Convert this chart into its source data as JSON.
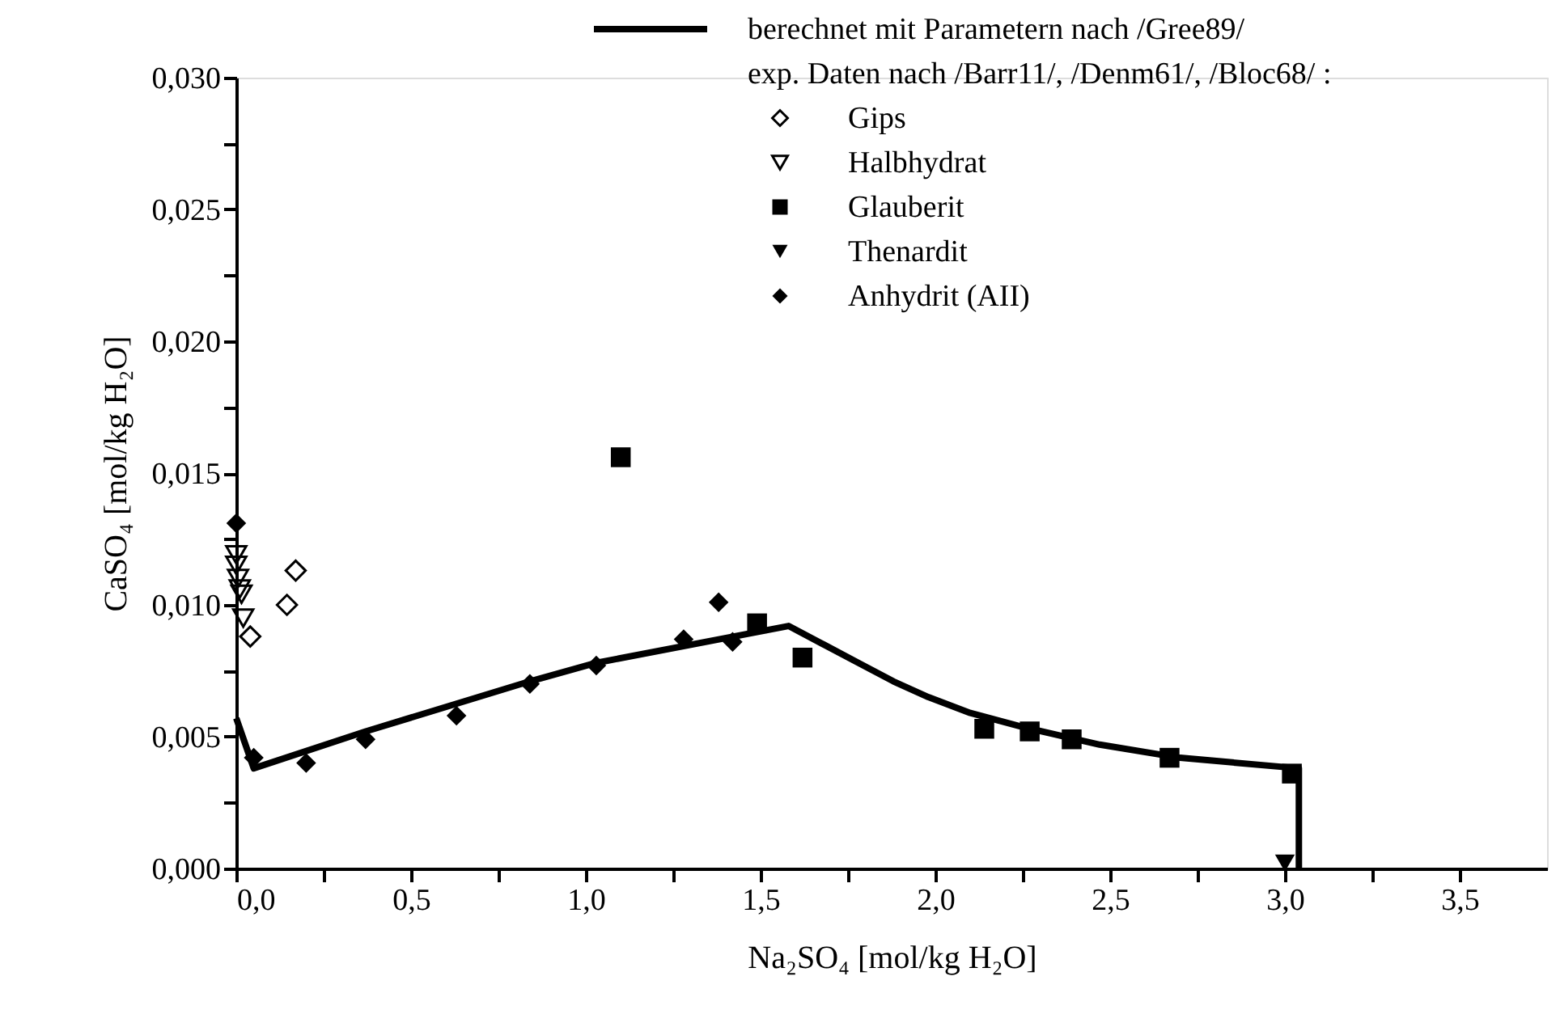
{
  "chart_data": {
    "type": "scatter",
    "xlabel": "Na₂SO₄ [mol/kg H₂O]",
    "ylabel": "CaSO₄ [mol/kg H₂O]",
    "legend_title": "exp. Daten nach /Barr11/, /Denm61/, /Bloc68/ :",
    "xlim": [
      0,
      3.75
    ],
    "ylim": [
      0,
      0.03
    ],
    "xticks": [
      {
        "value": 0,
        "label": "0,0"
      },
      {
        "value": 0.25,
        "label": null
      },
      {
        "value": 0.5,
        "label": "0,5"
      },
      {
        "value": 0.75,
        "label": null
      },
      {
        "value": 1,
        "label": "1,0"
      },
      {
        "value": 1.25,
        "label": null
      },
      {
        "value": 1.5,
        "label": "1,5"
      },
      {
        "value": 1.75,
        "label": null
      },
      {
        "value": 2,
        "label": "2,0"
      },
      {
        "value": 2.25,
        "label": null
      },
      {
        "value": 2.5,
        "label": "2,5"
      },
      {
        "value": 2.75,
        "label": null
      },
      {
        "value": 3,
        "label": "3,0"
      },
      {
        "value": 3.25,
        "label": null
      },
      {
        "value": 3.5,
        "label": "3,5"
      }
    ],
    "yticks": [
      {
        "value": 0,
        "label": "0,000"
      },
      {
        "value": 0.0025,
        "label": null
      },
      {
        "value": 0.005,
        "label": "0,005"
      },
      {
        "value": 0.0075,
        "label": null
      },
      {
        "value": 0.01,
        "label": "0,010"
      },
      {
        "value": 0.0125,
        "label": null
      },
      {
        "value": 0.015,
        "label": "0,015"
      },
      {
        "value": 0.0175,
        "label": null
      },
      {
        "value": 0.02,
        "label": "0,020"
      },
      {
        "value": 0.0225,
        "label": null
      },
      {
        "value": 0.025,
        "label": "0,025"
      },
      {
        "value": 0.0275,
        "label": null
      },
      {
        "value": 0.03,
        "label": "0,030"
      }
    ],
    "grid": false,
    "legend": "top right",
    "series": [
      {
        "name": "berechnet mit Parametern nach /Gree89/",
        "type": "line",
        "line_style": "solid",
        "marker": "none",
        "color": "#000000",
        "x": [
          0,
          0.05,
          0.37,
          0.84,
          1.03,
          1.58,
          1.68,
          1.78,
          1.88,
          1.98,
          2.1,
          2.24,
          2.47,
          2.7,
          3.04,
          3.04
        ],
        "values": [
          0.0057,
          0.0038,
          0.0052,
          0.0071,
          0.0078,
          0.0092,
          0.0085,
          0.0078,
          0.0071,
          0.0065,
          0.0059,
          0.0054,
          0.0047,
          0.0042,
          0.0038,
          0
        ]
      },
      {
        "name": "Gips",
        "marker": "diamond",
        "color": "#000000",
        "x": [
          0.17,
          0.145,
          0.04
        ],
        "values": [
          0.0113,
          0.01,
          0.0088
        ]
      },
      {
        "name": "Halbhydrat",
        "marker": "triangle-down",
        "color": "#000000",
        "x": [
          0,
          0,
          0.005,
          0.01,
          0.015,
          0.02
        ],
        "values": [
          0.0119,
          0.0115,
          0.011,
          0.0106,
          0.0104,
          0.0095
        ]
      },
      {
        "name": "Glauberit",
        "marker": "square",
        "color": "#000000",
        "x": [
          1.1,
          1.49,
          1.62,
          2.14,
          2.27,
          2.39,
          2.67,
          3.02
        ],
        "values": [
          0.0156,
          0.0093,
          0.008,
          0.0053,
          0.0052,
          0.0049,
          0.0042,
          0.0036
        ]
      },
      {
        "name": "Thenardit",
        "marker": "triangle-down",
        "color": "#000000",
        "x": [
          3.0
        ],
        "values": [
          0.0002
        ]
      },
      {
        "name": "Anhydrit (AII)",
        "marker": "diamond",
        "color": "#000000",
        "x": [
          0,
          0.05,
          0.2,
          0.37,
          0.63,
          0.84,
          1.03,
          1.28,
          1.38,
          1.42
        ],
        "values": [
          0.0131,
          0.0042,
          0.004,
          0.0049,
          0.0058,
          0.007,
          0.0077,
          0.0087,
          0.0101,
          0.0086
        ]
      }
    ]
  }
}
